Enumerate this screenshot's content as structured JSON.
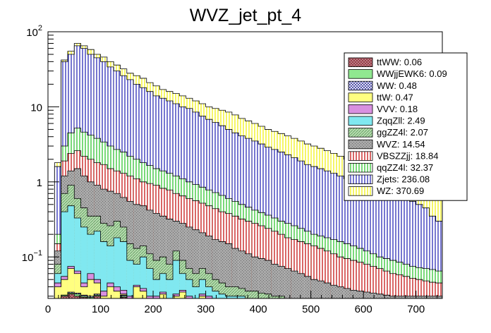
{
  "chart_data": {
    "type": "bar",
    "subtype": "stacked-histogram",
    "title": "WVZ_jet_pt_4",
    "xlabel": "",
    "ylabel": "",
    "x_range": [
      0,
      750
    ],
    "y_range": [
      0.028,
      100
    ],
    "y_scale": "log",
    "bin_width": 12.5,
    "x_ticks": [
      {
        "value": 0,
        "label": "0"
      },
      {
        "value": 100,
        "label": "100"
      },
      {
        "value": 200,
        "label": "200"
      },
      {
        "value": 300,
        "label": "300"
      },
      {
        "value": 400,
        "label": "400"
      },
      {
        "value": 500,
        "label": "500"
      },
      {
        "value": 600,
        "label": "600"
      },
      {
        "value": 700,
        "label": "700"
      }
    ],
    "y_ticks": [
      {
        "value": 0.1,
        "base": "10",
        "exp": "−1"
      },
      {
        "value": 1,
        "base": "1",
        "exp": ""
      },
      {
        "value": 10,
        "base": "10",
        "exp": ""
      },
      {
        "value": 100,
        "base": "10",
        "exp": "2"
      }
    ],
    "legend_position": "top-right",
    "notes": "Stack cumulative totals (top edges) estimated from the figure; individual per-bin component values are not labeled.",
    "series": [
      {
        "name": "ttWW",
        "yield": "0.06",
        "legend": "ttWW: 0.06",
        "fill": "#c08a8e",
        "hatch": "cross",
        "hatch_color": "#8b2232",
        "cumulative": [
          0,
          0,
          0.03,
          0.032,
          0.03,
          0.029,
          0.028,
          0.03,
          0,
          0,
          0,
          0.029,
          0,
          0,
          0,
          0,
          0,
          0,
          0,
          0,
          0,
          0,
          0,
          0,
          0,
          0,
          0,
          0,
          0,
          0,
          0,
          0,
          0,
          0,
          0,
          0,
          0,
          0,
          0,
          0,
          0,
          0,
          0,
          0,
          0,
          0,
          0,
          0,
          0,
          0,
          0,
          0,
          0,
          0,
          0,
          0,
          0,
          0,
          0,
          0
        ]
      },
      {
        "name": "WWjjEWK6",
        "yield": "0.09",
        "legend": "WWjjEWK6: 0.09",
        "fill": "#90e890",
        "hatch": "none",
        "hatch_color": "#2a9a2a",
        "cumulative": [
          0,
          0,
          0.031,
          0.033,
          0.032,
          0.03,
          0.029,
          0.031,
          0,
          0,
          0,
          0.03,
          0,
          0,
          0,
          0,
          0,
          0,
          0,
          0,
          0,
          0,
          0,
          0,
          0,
          0,
          0,
          0,
          0,
          0,
          0,
          0,
          0,
          0,
          0,
          0,
          0,
          0,
          0,
          0,
          0,
          0,
          0,
          0,
          0,
          0,
          0,
          0,
          0,
          0,
          0,
          0,
          0,
          0,
          0,
          0,
          0,
          0,
          0,
          0
        ]
      },
      {
        "name": "WW",
        "yield": "0.48",
        "legend": "WW: 0.48",
        "fill": "#ffffff",
        "hatch": "cross",
        "hatch_color": "#1a1a90",
        "cumulative": [
          0,
          0,
          0.031,
          0.034,
          0.033,
          0.031,
          0.03,
          0.032,
          0,
          0,
          0,
          0.031,
          0,
          0,
          0,
          0,
          0,
          0,
          0,
          0,
          0,
          0,
          0,
          0,
          0,
          0,
          0,
          0,
          0,
          0,
          0,
          0,
          0,
          0,
          0,
          0,
          0,
          0,
          0,
          0,
          0,
          0,
          0,
          0,
          0,
          0,
          0,
          0,
          0,
          0,
          0,
          0,
          0,
          0,
          0,
          0,
          0,
          0,
          0,
          0
        ]
      },
      {
        "name": "ttW",
        "yield": "0.47",
        "legend": "ttW: 0.47",
        "fill": "#ffff80",
        "hatch": "none",
        "hatch_color": "#b0b000",
        "cumulative": [
          0,
          0.04,
          0.05,
          0.07,
          0.06,
          0.04,
          0.05,
          0.045,
          0.03,
          0.04,
          0.035,
          0.032,
          0,
          0.04,
          0.035,
          0,
          0,
          0.032,
          0,
          0.03,
          0.034,
          0,
          0,
          0.03,
          0,
          0,
          0,
          0,
          0,
          0,
          0,
          0,
          0,
          0,
          0,
          0,
          0,
          0,
          0,
          0,
          0,
          0,
          0,
          0,
          0,
          0,
          0,
          0,
          0,
          0,
          0,
          0,
          0,
          0,
          0,
          0,
          0,
          0,
          0,
          0
        ]
      },
      {
        "name": "VVV",
        "yield": "0.18",
        "legend": "VVV: 0.18",
        "fill": "#d890e0",
        "hatch": "none",
        "hatch_color": "#a040b0",
        "cumulative": [
          0,
          0.045,
          0.055,
          0.075,
          0.065,
          0.045,
          0.06,
          0.05,
          0.035,
          0.045,
          0.04,
          0.036,
          0.03,
          0.042,
          0.038,
          0.03,
          0.03,
          0.034,
          0,
          0.032,
          0.036,
          0.03,
          0,
          0.032,
          0.03,
          0,
          0,
          0,
          0,
          0,
          0,
          0,
          0,
          0,
          0,
          0,
          0,
          0,
          0,
          0,
          0,
          0,
          0,
          0,
          0,
          0,
          0,
          0,
          0,
          0,
          0,
          0,
          0,
          0,
          0,
          0,
          0,
          0,
          0,
          0
        ]
      },
      {
        "name": "ZqqZll",
        "yield": "2.49",
        "legend": "ZqqZll: 2.49",
        "fill": "#80e8f0",
        "hatch": "none",
        "hatch_color": "#20a0b0",
        "cumulative": [
          0,
          0.06,
          0.4,
          0.48,
          0.33,
          0.25,
          0.2,
          0.22,
          0.16,
          0.14,
          0.18,
          0.16,
          0.09,
          0.08,
          0.1,
          0.07,
          0.05,
          0.06,
          0.05,
          0.09,
          0.06,
          0.05,
          0.04,
          0.05,
          0.04,
          0.035,
          0.032,
          0.03,
          0.03,
          0.03,
          0,
          0,
          0,
          0,
          0,
          0,
          0,
          0,
          0,
          0,
          0,
          0,
          0,
          0,
          0,
          0,
          0,
          0,
          0,
          0,
          0,
          0,
          0,
          0,
          0,
          0,
          0,
          0,
          0,
          0
        ]
      },
      {
        "name": "ggZZ4l",
        "yield": "2.07",
        "legend": "ggZZ4l: 2.07",
        "fill": "#b8dcb0",
        "hatch": "diag",
        "hatch_color": "#5a9a5a",
        "cumulative": [
          0,
          0.08,
          0.7,
          0.9,
          0.6,
          0.45,
          0.35,
          0.35,
          0.28,
          0.26,
          0.3,
          0.25,
          0.15,
          0.13,
          0.14,
          0.11,
          0.09,
          0.1,
          0.08,
          0.12,
          0.09,
          0.07,
          0.06,
          0.07,
          0.06,
          0.05,
          0.045,
          0.04,
          0.04,
          0.038,
          0.035,
          0.035,
          0.033,
          0.032,
          0.03,
          0.03,
          0,
          0,
          0,
          0,
          0,
          0,
          0,
          0,
          0,
          0,
          0,
          0,
          0,
          0,
          0,
          0,
          0,
          0,
          0,
          0,
          0,
          0,
          0,
          0
        ]
      },
      {
        "name": "WVZ",
        "yield": "14.54",
        "legend": "WVZ: 14.54",
        "fill": "#a8a8a8",
        "hatch": "dots",
        "hatch_color": "#6a6a6a",
        "cumulative": [
          0,
          0.12,
          1.2,
          1.4,
          1.5,
          1.2,
          1.0,
          0.9,
          0.8,
          0.75,
          0.7,
          0.62,
          0.55,
          0.5,
          0.48,
          0.42,
          0.38,
          0.35,
          0.32,
          0.3,
          0.28,
          0.25,
          0.23,
          0.21,
          0.19,
          0.17,
          0.16,
          0.15,
          0.13,
          0.12,
          0.11,
          0.1,
          0.095,
          0.09,
          0.08,
          0.075,
          0.07,
          0.065,
          0.06,
          0.055,
          0.05,
          0.048,
          0.045,
          0.042,
          0.04,
          0.038,
          0.036,
          0.035,
          0.034,
          0.033,
          0.032,
          0.031,
          0.03,
          0.03,
          0.03,
          0.03,
          0.03,
          0.03,
          0.03,
          0.03
        ]
      },
      {
        "name": "VBSZZjj",
        "yield": "18.84",
        "legend": "VBSZZjj: 18.84",
        "fill": "#ffffff",
        "hatch": "vert",
        "hatch_color": "#c00000",
        "cumulative": [
          0,
          0.15,
          1.9,
          2.4,
          2.6,
          2.2,
          2.0,
          1.8,
          1.7,
          1.5,
          1.4,
          1.3,
          1.2,
          1.1,
          1.0,
          0.95,
          0.9,
          0.82,
          0.78,
          0.7,
          0.65,
          0.6,
          0.56,
          0.52,
          0.48,
          0.44,
          0.4,
          0.38,
          0.35,
          0.32,
          0.3,
          0.28,
          0.26,
          0.24,
          0.22,
          0.2,
          0.18,
          0.17,
          0.16,
          0.15,
          0.14,
          0.13,
          0.12,
          0.11,
          0.1,
          0.095,
          0.09,
          0.085,
          0.08,
          0.075,
          0.07,
          0.065,
          0.06,
          0.058,
          0.055,
          0.052,
          0.05,
          0.048,
          0.046,
          0.045
        ]
      },
      {
        "name": "qqZZ4l",
        "yield": "32.37",
        "legend": "qqZZ4l: 32.37",
        "fill": "#ffffff",
        "hatch": "vert",
        "hatch_color": "#20c020",
        "cumulative": [
          0,
          0.2,
          3.0,
          4.5,
          5.2,
          4.6,
          4.2,
          3.8,
          3.4,
          3.0,
          2.7,
          2.5,
          2.2,
          2.0,
          1.8,
          1.65,
          1.5,
          1.4,
          1.3,
          1.2,
          1.1,
          1.0,
          0.92,
          0.85,
          0.78,
          0.72,
          0.66,
          0.6,
          0.55,
          0.5,
          0.46,
          0.42,
          0.39,
          0.36,
          0.33,
          0.3,
          0.28,
          0.26,
          0.24,
          0.22,
          0.2,
          0.19,
          0.18,
          0.17,
          0.16,
          0.15,
          0.14,
          0.13,
          0.12,
          0.11,
          0.1,
          0.095,
          0.09,
          0.085,
          0.08,
          0.075,
          0.072,
          0.07,
          0.068,
          0.065
        ]
      },
      {
        "name": "Zjets",
        "yield": "236.08",
        "legend": "Zjets: 236.08",
        "fill": "#ffffff",
        "hatch": "vert",
        "hatch_color": "#1a1ab0",
        "cumulative": [
          0,
          1.6,
          40,
          50,
          65,
          60,
          50,
          45,
          40,
          34,
          30,
          26,
          23,
          20,
          18,
          16,
          14,
          13,
          12,
          11,
          10,
          9.5,
          8.5,
          7.5,
          6.8,
          6.2,
          5.6,
          5.0,
          4.5,
          4.1,
          3.8,
          3.5,
          3.2,
          2.9,
          2.7,
          2.5,
          2.3,
          2.1,
          1.9,
          1.7,
          1.6,
          1.5,
          1.4,
          1.3,
          1.2,
          1.1,
          1.0,
          0.95,
          0.9,
          0.85,
          0.8,
          0.75,
          0.7,
          0.65,
          0.6,
          0.55,
          0.5,
          0.45,
          0.35,
          0.3
        ]
      },
      {
        "name": "WZ",
        "yield": "370.69",
        "legend": "WZ: 370.69",
        "fill": "#ffffff",
        "hatch": "vert",
        "hatch_color": "#f0f000",
        "cumulative": [
          0,
          1.8,
          42,
          55,
          70,
          65,
          58,
          50,
          46,
          40,
          36,
          32,
          28,
          26,
          24,
          21,
          19,
          17,
          16,
          15,
          14,
          13,
          12,
          11,
          10,
          9.5,
          9,
          8.5,
          7.8,
          7.0,
          6.5,
          6.0,
          5.5,
          5.0,
          4.7,
          4.4,
          4.1,
          3.8,
          3.5,
          3.2,
          3.0,
          2.8,
          2.6,
          2.4,
          2.2,
          2.0,
          1.85,
          1.7,
          1.6,
          1.5,
          1.4,
          1.3,
          1.2,
          1.1,
          1.0,
          0.95,
          0.9,
          0.85,
          0.8,
          0.75
        ]
      }
    ]
  }
}
